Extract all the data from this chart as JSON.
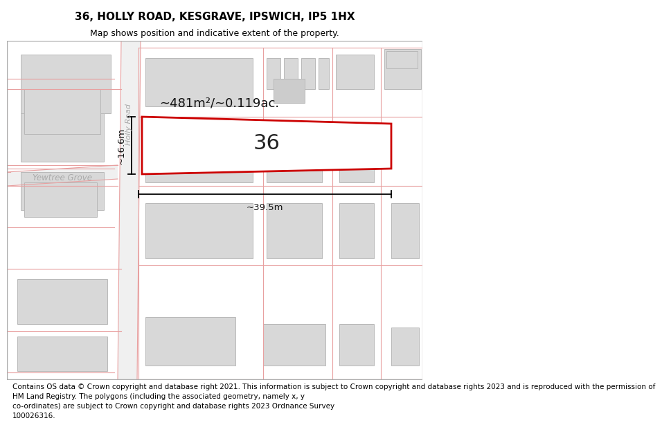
{
  "title": "36, HOLLY ROAD, KESGRAVE, IPSWICH, IP5 1HX",
  "subtitle": "Map shows position and indicative extent of the property.",
  "footer_line1": "Contains OS data © Crown copyright and database right 2021. This information is subject to Crown copyright and database rights 2023 and is reproduced with the permission of",
  "footer_line2": "HM Land Registry. The polygons (including the associated geometry, namely x, y",
  "footer_line3": "co-ordinates) are subject to Crown copyright and database rights 2023 Ordnance Survey",
  "footer_line4": "100026316.",
  "building_fill": "#d8d8d8",
  "building_edge": "#b8b8b8",
  "road_edge_color": "#e8a0a0",
  "highlight_color": "#cc0000",
  "area_label": "~481m²/~0.119ac.",
  "number_label": "36",
  "width_label": "~39.5m",
  "height_label": "~16.6m",
  "road_label_holly": "Holly Road",
  "road_label_yewtree": "Yewtree Grove",
  "title_fontsize": 11,
  "subtitle_fontsize": 9,
  "footer_fontsize": 7.5
}
